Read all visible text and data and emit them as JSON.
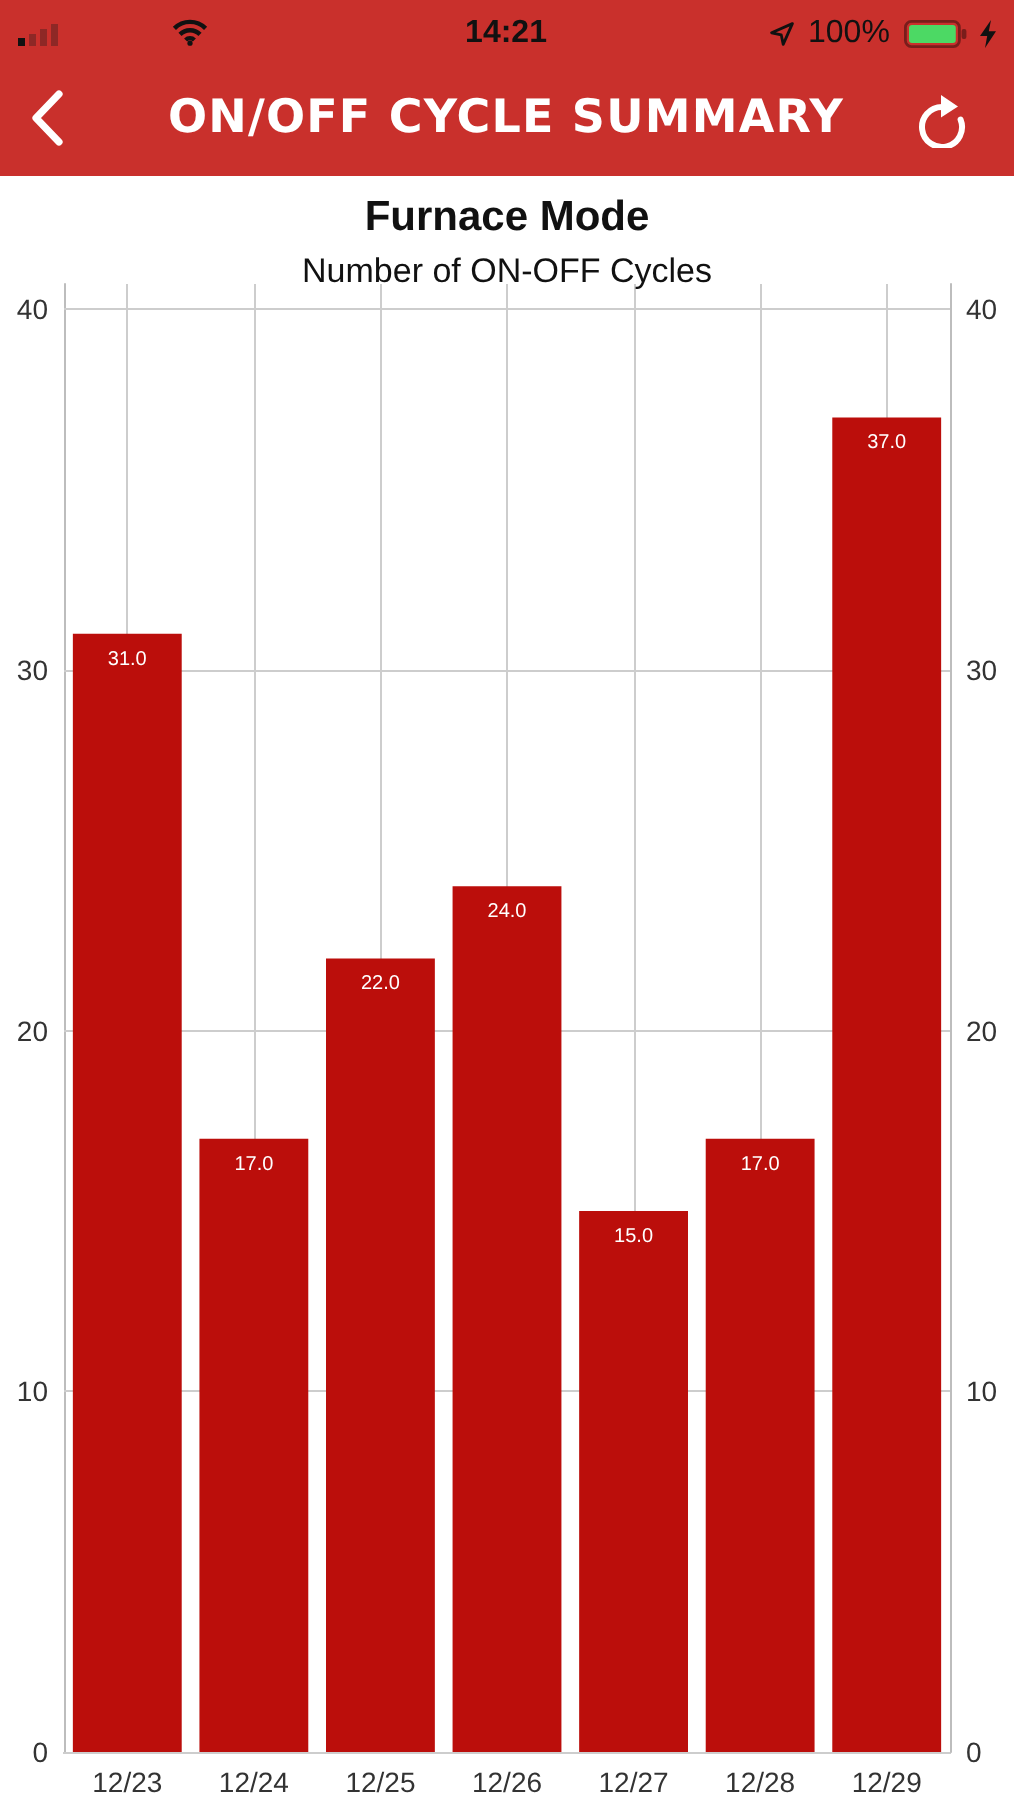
{
  "chart_data": {
    "type": "bar",
    "title": "Furnace Mode",
    "subtitle": "Number of ON-OFF Cycles",
    "annotations": [
      "ON/OFF CYCLE SUMMARY",
      "14:21",
      "100%"
    ],
    "categories": [
      "12/23",
      "12/24",
      "12/25",
      "12/26",
      "12/27",
      "12/28",
      "12/29"
    ],
    "values": [
      31,
      17,
      22,
      24,
      15,
      17,
      37
    ],
    "value_labels": [
      "31.0",
      "17.0",
      "22.0",
      "24.0",
      "15.0",
      "17.0",
      "37.0"
    ],
    "color": "#bb0e0b",
    "ylim": [
      0,
      40.7
    ],
    "yticks": [
      0,
      10,
      20,
      30,
      40
    ],
    "y2lim": [
      0,
      40.7
    ],
    "y2ticks": [
      0,
      10,
      20,
      30,
      40
    ],
    "grid": true
  }
}
